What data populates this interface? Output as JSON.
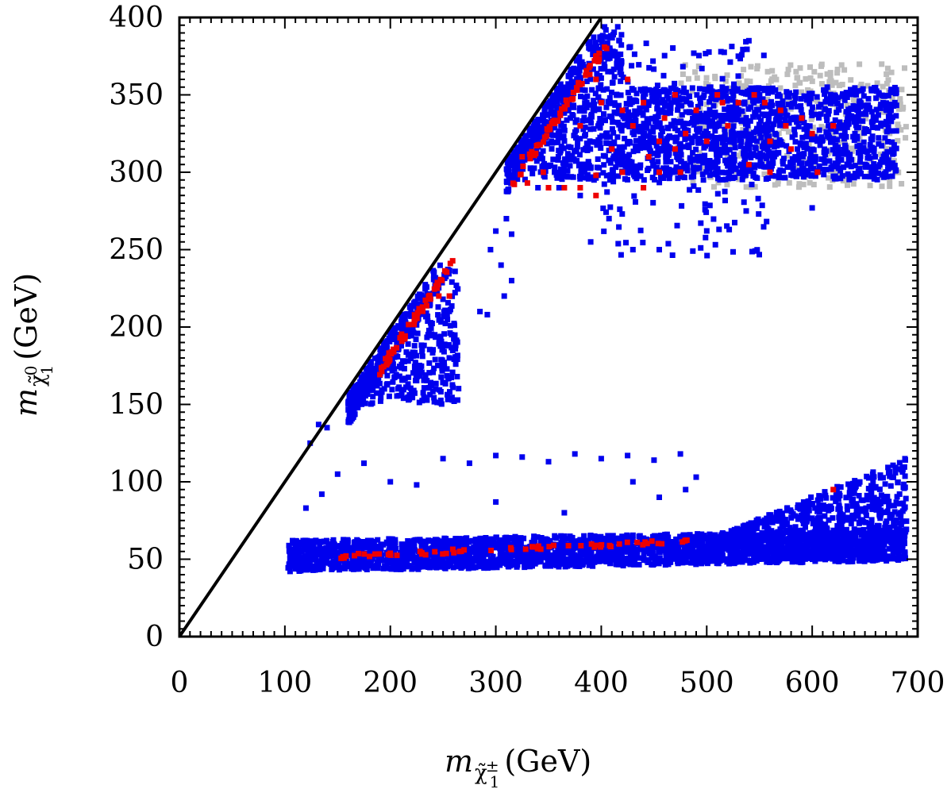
{
  "chart_data": {
    "type": "scatter",
    "title": "",
    "xlabel": {
      "symbol": "m",
      "sub": "χ̃",
      "sub_sup": "±",
      "sub_sub": "1",
      "unit": "(GeV)"
    },
    "ylabel": {
      "symbol": "m",
      "sub": "χ̃",
      "sub_sup": "0",
      "sub_sub": "1",
      "unit": "(GeV)"
    },
    "xlim": [
      0,
      700
    ],
    "ylim": [
      0,
      400
    ],
    "xticks": [
      0,
      100,
      200,
      300,
      400,
      500,
      600,
      700
    ],
    "yticks": [
      0,
      50,
      100,
      150,
      200,
      250,
      300,
      350,
      400
    ],
    "xtick_labels": [
      "0",
      "100",
      "200",
      "300",
      "400",
      "500",
      "600",
      "700"
    ],
    "ytick_labels": [
      "0",
      "50",
      "100",
      "150",
      "200",
      "250",
      "300",
      "350",
      "400"
    ],
    "reference_line": {
      "name": "m_chi0 = m_chi+-",
      "x": [
        0,
        400
      ],
      "y": [
        0,
        400
      ],
      "color": "#000000"
    },
    "series": [
      {
        "name": "grey",
        "color": "#bdbdbd",
        "regions": [
          {
            "x": [
              470,
              690
            ],
            "y": [
              290,
              370
            ],
            "n": 380
          }
        ]
      },
      {
        "name": "blue",
        "color": "#0000ee",
        "regions": [
          {
            "x": [
              103,
              690
            ],
            "y": [
              40,
              70
            ],
            "n": 2400
          },
          {
            "x": [
              500,
              690
            ],
            "y": [
              65,
              115
            ],
            "n": 900
          },
          {
            "x": [
              160,
              265
            ],
            "y": [
              150,
              240
            ],
            "n": 600
          },
          {
            "x": [
              310,
              420
            ],
            "y": [
              295,
              395
            ],
            "n": 700
          },
          {
            "x": [
              420,
              680
            ],
            "y": [
              295,
              355
            ],
            "n": 1300
          },
          {
            "x": [
              400,
              560
            ],
            "y": [
              245,
              385
            ],
            "n": 150
          }
        ],
        "points": [
          [
            124,
            125
          ],
          [
            132,
            137
          ],
          [
            140,
            135
          ],
          [
            120,
            83
          ],
          [
            135,
            92
          ],
          [
            150,
            105
          ],
          [
            175,
            112
          ],
          [
            200,
            100
          ],
          [
            225,
            98
          ],
          [
            250,
            115
          ],
          [
            275,
            112
          ],
          [
            300,
            117
          ],
          [
            325,
            116
          ],
          [
            350,
            113
          ],
          [
            375,
            118
          ],
          [
            400,
            115
          ],
          [
            425,
            117
          ],
          [
            450,
            114
          ],
          [
            475,
            118
          ],
          [
            430,
            100
          ],
          [
            455,
            90
          ],
          [
            480,
            95
          ],
          [
            300,
            87
          ],
          [
            365,
            80
          ],
          [
            490,
            103
          ],
          [
            310,
            270
          ],
          [
            300,
            262
          ],
          [
            295,
            250
          ],
          [
            305,
            240
          ],
          [
            315,
            260
          ],
          [
            285,
            210
          ],
          [
            292,
            208
          ],
          [
            308,
            220
          ],
          [
            315,
            230
          ],
          [
            340,
            290
          ],
          [
            360,
            290
          ],
          [
            380,
            285
          ],
          [
            390,
            255
          ],
          [
            430,
            250
          ],
          [
            455,
            250
          ],
          [
            600,
            277
          ],
          [
            540,
            385
          ],
          [
            530,
            375
          ]
        ]
      },
      {
        "name": "red",
        "color": "#ee0000",
        "diagonal_bands": [
          {
            "x": [
              188,
              260
            ],
            "offset": -15,
            "n": 50
          },
          {
            "x": [
              315,
              405
            ],
            "offset": -20,
            "n": 55
          }
        ],
        "band": {
          "x": [
            145,
            485
          ],
          "y": [
            47,
            61
          ],
          "n": 60
        },
        "points": [
          [
            246,
            220
          ],
          [
            256,
            220
          ],
          [
            238,
            218
          ],
          [
            325,
            310
          ],
          [
            330,
            293
          ],
          [
            345,
            300
          ],
          [
            350,
            290
          ],
          [
            365,
            290
          ],
          [
            380,
            290
          ],
          [
            395,
            285
          ],
          [
            395,
            298
          ],
          [
            420,
            340
          ],
          [
            440,
            345
          ],
          [
            430,
            330
          ],
          [
            455,
            320
          ],
          [
            460,
            335
          ],
          [
            420,
            300
          ],
          [
            445,
            310
          ],
          [
            475,
            300
          ],
          [
            480,
            325
          ],
          [
            490,
            340
          ],
          [
            500,
            320
          ],
          [
            510,
            350
          ],
          [
            520,
            330
          ],
          [
            530,
            345
          ],
          [
            545,
            350
          ],
          [
            555,
            345
          ],
          [
            560,
            320
          ],
          [
            575,
            330
          ],
          [
            570,
            340
          ],
          [
            580,
            315
          ],
          [
            590,
            335
          ],
          [
            600,
            325
          ],
          [
            620,
            330
          ],
          [
            605,
            300
          ],
          [
            515,
            345
          ],
          [
            470,
            350
          ],
          [
            425,
            360
          ],
          [
            395,
            360
          ],
          [
            380,
            330
          ],
          [
            400,
            345
          ],
          [
            410,
            315
          ],
          [
            440,
            290
          ],
          [
            540,
            305
          ],
          [
            560,
            300
          ],
          [
            620,
            95
          ],
          [
            620,
            330
          ],
          [
            405,
            380
          ],
          [
            398,
            373
          ],
          [
            470,
            315
          ],
          [
            455,
            300
          ]
        ]
      }
    ]
  }
}
